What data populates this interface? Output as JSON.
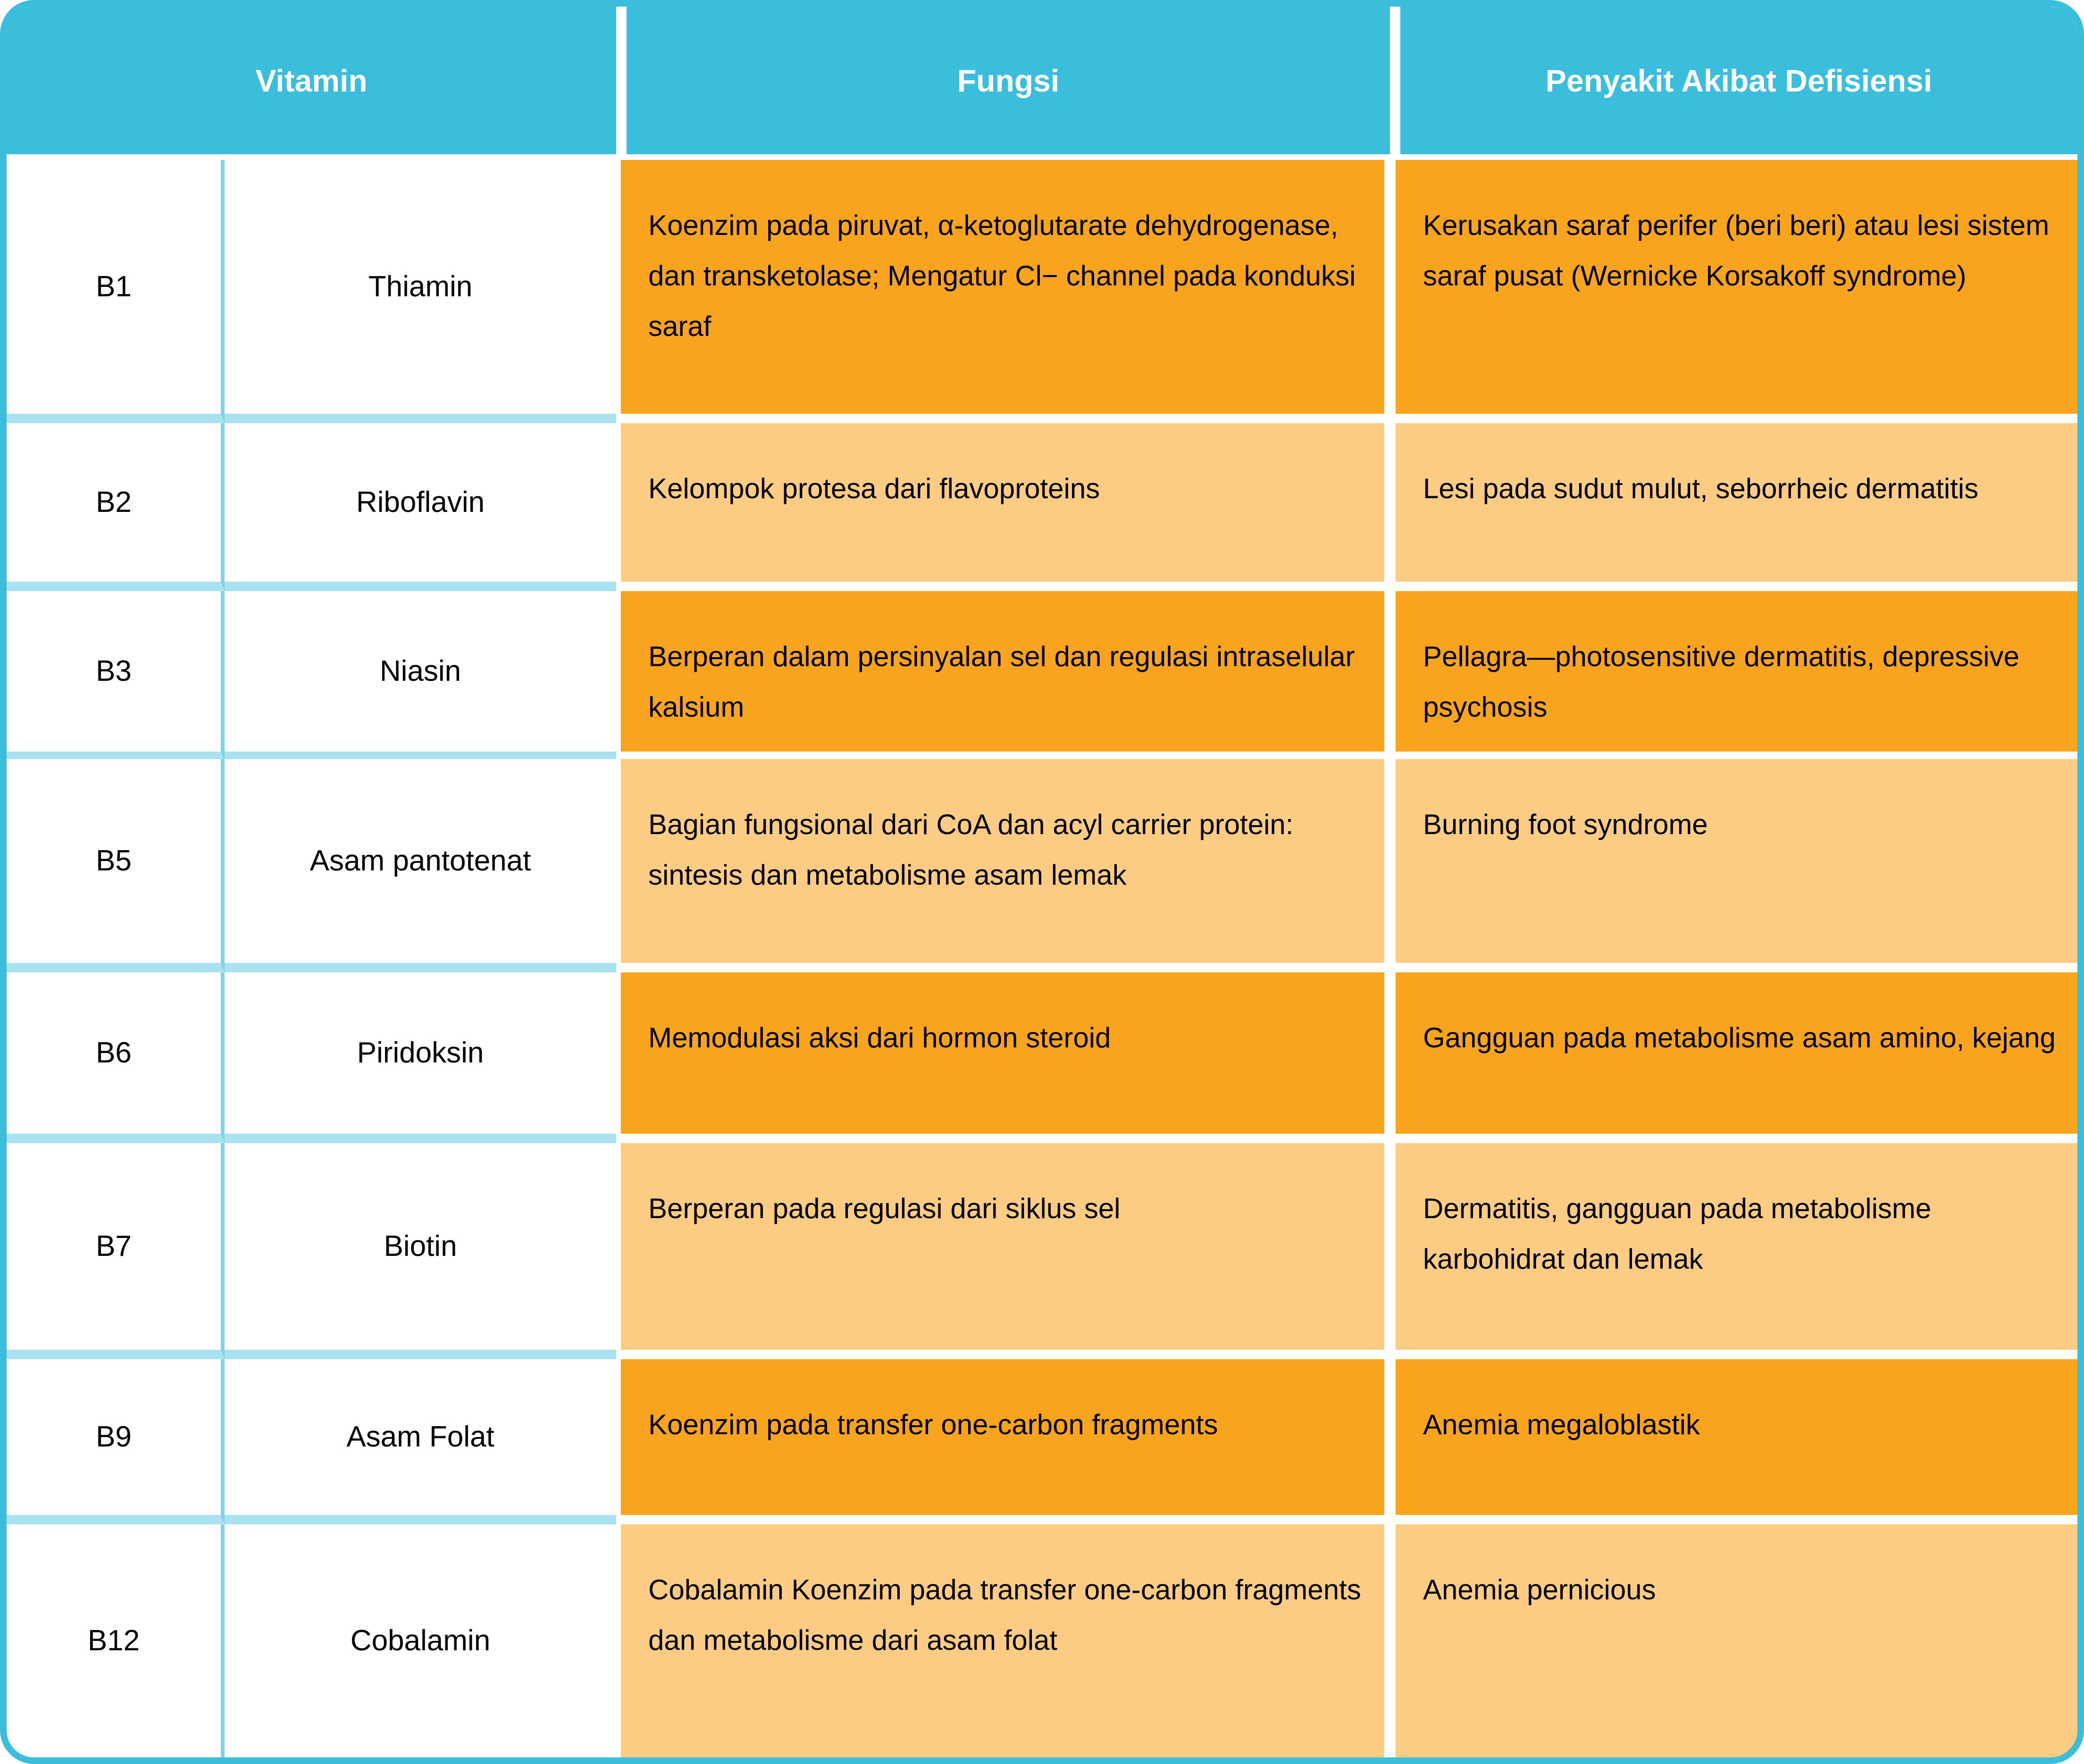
{
  "table": {
    "headers": {
      "vitamin": "Vitamin",
      "fungsi": "Fungsi",
      "penyakit": "Penyakit Akibat Defisiensi"
    },
    "rows": [
      {
        "code": "B1",
        "name": "Thiamin",
        "fungsi": "Koenzim pada piruvat, α-ketoglutarate dehydrogenase, dan transketolase; Mengatur Cl− channel pada konduksi saraf",
        "penyakit": "Kerusakan saraf perifer (beri beri) atau lesi sistem saraf pusat (Wernicke Korsakoff syndrome)",
        "shade": "dark"
      },
      {
        "code": "B2",
        "name": "Riboflavin",
        "fungsi": "Kelompok protesa dari flavoproteins",
        "penyakit": "Lesi pada sudut mulut, seborrheic dermatitis",
        "shade": "light"
      },
      {
        "code": "B3",
        "name": "Niasin",
        "fungsi": "Berperan dalam persinyalan sel dan regulasi intraselular kalsium",
        "penyakit": "Pellagra—photosensitive dermatitis, depressive psychosis",
        "shade": "dark"
      },
      {
        "code": "B5",
        "name": "Asam pantotenat",
        "fungsi": "Bagian fungsional dari CoA dan acyl carrier protein: sintesis dan metabolisme asam lemak",
        "penyakit": "Burning foot syndrome",
        "shade": "light"
      },
      {
        "code": "B6",
        "name": "Piridoksin",
        "fungsi": "Memodulasi aksi dari hormon steroid",
        "penyakit": "Gangguan pada metabolisme asam amino, kejang",
        "shade": "dark"
      },
      {
        "code": "B7",
        "name": "Biotin",
        "fungsi": "Berperan pada regulasi dari siklus sel",
        "penyakit": "Dermatitis, gangguan pada metabolisme karbohidrat dan lemak",
        "shade": "light"
      },
      {
        "code": "B9",
        "name": "Asam Folat",
        "fungsi": "Koenzim pada transfer one-carbon fragments",
        "penyakit": "Anemia megaloblastik",
        "shade": "dark"
      },
      {
        "code": "B12",
        "name": "Cobalamin",
        "fungsi": "Cobalamin Koenzim pada transfer one-carbon fragments dan metabolisme dari asam folat",
        "penyakit": "Anemia pernicious",
        "shade": "light"
      }
    ],
    "colors": {
      "header_bg": "#3BBDDC",
      "border": "#3BBDDC",
      "row_band": "#A9E1F0",
      "subcol_divider": "#7ED3E8",
      "dark_orange": "#F9A41F",
      "light_orange": "#FCCC84",
      "header_text": "#FFFFFF",
      "body_text": "#000000",
      "cell_gap": "#FFFFFF"
    }
  }
}
